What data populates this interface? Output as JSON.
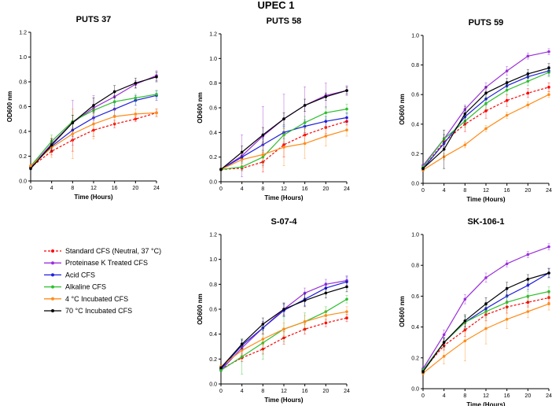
{
  "figure_title": "UPEC 1",
  "legend": [
    {
      "label": "Standard CFS (Neutral, 37 °C)",
      "color": "#ff0000",
      "dashed": true
    },
    {
      "label": "Proteinase K Treated CFS",
      "color": "#9b30d9",
      "dashed": false
    },
    {
      "label": "Acid CFS",
      "color": "#1f1fdb",
      "dashed": false
    },
    {
      "label": "Alkaline CFS",
      "color": "#2fbf2f",
      "dashed": false
    },
    {
      "label": "4 °C Incubated CFS",
      "color": "#ff8c1a",
      "dashed": false
    },
    {
      "label": "70 °C Incubated CFS",
      "color": "#000000",
      "dashed": false
    }
  ],
  "chart_data": [
    {
      "type": "line",
      "title": "PUTS 37",
      "xlabel": "Time (Hours)",
      "ylabel": "OD600 nm",
      "x": [
        0,
        4,
        8,
        12,
        16,
        20,
        24
      ],
      "ylim": [
        0,
        1.2
      ],
      "yticks": [
        "0.0",
        "0.2",
        "0.4",
        "0.6",
        "0.8",
        "1.0",
        "1.2"
      ],
      "series": [
        {
          "name": "Standard CFS (Neutral, 37 °C)",
          "values": [
            0.11,
            0.24,
            0.33,
            0.41,
            0.46,
            0.5,
            0.55
          ],
          "err": [
            0.01,
            0.03,
            0.09,
            0.05,
            0.03,
            0.02,
            0.03
          ]
        },
        {
          "name": "Proteinase K Treated CFS",
          "values": [
            0.11,
            0.3,
            0.47,
            0.59,
            0.68,
            0.78,
            0.85
          ],
          "err": [
            0.01,
            0.04,
            0.18,
            0.1,
            0.05,
            0.03,
            0.04
          ]
        },
        {
          "name": "Acid CFS",
          "values": [
            0.11,
            0.28,
            0.41,
            0.51,
            0.58,
            0.65,
            0.69
          ],
          "err": [
            0.01,
            0.03,
            0.05,
            0.05,
            0.05,
            0.04,
            0.04
          ]
        },
        {
          "name": "Alkaline CFS",
          "values": [
            0.12,
            0.32,
            0.48,
            0.57,
            0.64,
            0.67,
            0.7
          ],
          "err": [
            0.01,
            0.05,
            0.05,
            0.04,
            0.03,
            0.03,
            0.03
          ]
        },
        {
          "name": "4 °C Incubated CFS",
          "values": [
            0.12,
            0.27,
            0.38,
            0.46,
            0.52,
            0.54,
            0.55
          ],
          "err": [
            0.01,
            0.08,
            0.2,
            0.12,
            0.06,
            0.04,
            0.03
          ]
        },
        {
          "name": "70 °C Incubated CFS",
          "values": [
            0.1,
            0.29,
            0.47,
            0.61,
            0.72,
            0.79,
            0.84
          ],
          "err": [
            0.01,
            0.05,
            0.06,
            0.06,
            0.05,
            0.04,
            0.04
          ]
        }
      ]
    },
    {
      "type": "line",
      "title": "PUTS 58",
      "xlabel": "Time (Hours)",
      "ylabel": "OD600 nm",
      "x": [
        0,
        4,
        8,
        12,
        16,
        20,
        24
      ],
      "ylim": [
        0,
        1.2
      ],
      "yticks": [
        "0.0",
        "0.2",
        "0.4",
        "0.6",
        "0.8",
        "1.0",
        "1.2"
      ],
      "series": [
        {
          "name": "Standard CFS (Neutral, 37 °C)",
          "values": [
            0.1,
            0.11,
            0.16,
            0.3,
            0.38,
            0.44,
            0.49
          ],
          "err": [
            0.01,
            0.02,
            0.08,
            0.1,
            0.07,
            0.05,
            0.03
          ]
        },
        {
          "name": "Proteinase K Treated CFS",
          "values": [
            0.1,
            0.21,
            0.37,
            0.51,
            0.62,
            0.7,
            0.74
          ],
          "err": [
            0.01,
            0.17,
            0.24,
            0.2,
            0.15,
            0.1,
            0.04
          ]
        },
        {
          "name": "Acid CFS",
          "values": [
            0.1,
            0.2,
            0.3,
            0.4,
            0.45,
            0.49,
            0.52
          ],
          "err": [
            0.01,
            0.04,
            0.05,
            0.05,
            0.05,
            0.04,
            0.04
          ]
        },
        {
          "name": "Alkaline CFS",
          "values": [
            0.1,
            0.12,
            0.2,
            0.38,
            0.48,
            0.56,
            0.59
          ],
          "err": [
            0.01,
            0.03,
            0.06,
            0.06,
            0.05,
            0.05,
            0.04
          ]
        },
        {
          "name": "4 °C Incubated CFS",
          "values": [
            0.1,
            0.18,
            0.22,
            0.28,
            0.31,
            0.37,
            0.42
          ],
          "err": [
            0.01,
            0.05,
            0.1,
            0.15,
            0.12,
            0.08,
            0.05
          ]
        },
        {
          "name": "70 °C Incubated CFS",
          "values": [
            0.1,
            0.24,
            0.38,
            0.51,
            0.62,
            0.69,
            0.74
          ],
          "err": [
            0.01,
            0.05,
            0.06,
            0.05,
            0.05,
            0.03,
            0.03
          ]
        }
      ]
    },
    {
      "type": "line",
      "title": "PUTS 59",
      "xlabel": "Time (Hours)",
      "ylabel": "OD600 nm",
      "x": [
        0,
        4,
        8,
        12,
        16,
        20,
        24
      ],
      "ylim": [
        0,
        1.0
      ],
      "yticks": [
        "0.0",
        "0.2",
        "0.4",
        "0.6",
        "0.8",
        "1.0"
      ],
      "series": [
        {
          "name": "Standard CFS (Neutral, 37 °C)",
          "values": [
            0.1,
            0.28,
            0.4,
            0.49,
            0.56,
            0.61,
            0.65
          ],
          "err": [
            0.01,
            0.03,
            0.05,
            0.05,
            0.04,
            0.03,
            0.03
          ]
        },
        {
          "name": "Proteinase K Treated CFS",
          "values": [
            0.12,
            0.3,
            0.5,
            0.65,
            0.76,
            0.86,
            0.89
          ],
          "err": [
            0.01,
            0.03,
            0.03,
            0.03,
            0.03,
            0.02,
            0.02
          ]
        },
        {
          "name": "Acid CFS",
          "values": [
            0.1,
            0.27,
            0.45,
            0.57,
            0.66,
            0.72,
            0.76
          ],
          "err": [
            0.01,
            0.03,
            0.04,
            0.04,
            0.03,
            0.03,
            0.03
          ]
        },
        {
          "name": "Alkaline CFS",
          "values": [
            0.11,
            0.3,
            0.42,
            0.54,
            0.63,
            0.69,
            0.75
          ],
          "err": [
            0.01,
            0.03,
            0.04,
            0.04,
            0.03,
            0.03,
            0.03
          ]
        },
        {
          "name": "4 °C Incubated CFS",
          "values": [
            0.09,
            0.18,
            0.26,
            0.37,
            0.46,
            0.53,
            0.6
          ],
          "err": [
            0.01,
            0.02,
            0.02,
            0.02,
            0.02,
            0.02,
            0.02
          ]
        },
        {
          "name": "70 °C Incubated CFS",
          "values": [
            0.1,
            0.23,
            0.47,
            0.61,
            0.68,
            0.74,
            0.78
          ],
          "err": [
            0.01,
            0.13,
            0.05,
            0.04,
            0.03,
            0.03,
            0.03
          ]
        }
      ]
    },
    {
      "type": "line",
      "title": "S-07-4",
      "xlabel": "Time (Hours)",
      "ylabel": "OD600 nm",
      "x": [
        0,
        4,
        8,
        12,
        16,
        20,
        24
      ],
      "ylim": [
        0,
        1.2
      ],
      "yticks": [
        "0.0",
        "0.2",
        "0.4",
        "0.6",
        "0.8",
        "1.0",
        "1.2"
      ],
      "series": [
        {
          "name": "Standard CFS (Neutral, 37 °C)",
          "values": [
            0.12,
            0.21,
            0.28,
            0.37,
            0.44,
            0.49,
            0.53
          ],
          "err": [
            0.01,
            0.03,
            0.04,
            0.05,
            0.04,
            0.03,
            0.03
          ]
        },
        {
          "name": "Proteinase K Treated CFS",
          "values": [
            0.11,
            0.29,
            0.45,
            0.6,
            0.73,
            0.8,
            0.83
          ],
          "err": [
            0.01,
            0.04,
            0.05,
            0.05,
            0.04,
            0.04,
            0.04
          ]
        },
        {
          "name": "Acid CFS",
          "values": [
            0.12,
            0.31,
            0.45,
            0.59,
            0.68,
            0.77,
            0.82
          ],
          "err": [
            0.01,
            0.04,
            0.05,
            0.05,
            0.05,
            0.04,
            0.04
          ]
        },
        {
          "name": "Alkaline CFS",
          "values": [
            0.11,
            0.22,
            0.33,
            0.44,
            0.5,
            0.58,
            0.68
          ],
          "err": [
            0.01,
            0.14,
            0.13,
            0.1,
            0.07,
            0.04,
            0.03
          ]
        },
        {
          "name": "4 °C Incubated CFS",
          "values": [
            0.14,
            0.27,
            0.36,
            0.44,
            0.5,
            0.55,
            0.58
          ],
          "err": [
            0.01,
            0.04,
            0.05,
            0.05,
            0.05,
            0.04,
            0.04
          ]
        },
        {
          "name": "70 °C Incubated CFS",
          "values": [
            0.13,
            0.32,
            0.48,
            0.6,
            0.67,
            0.73,
            0.78
          ],
          "err": [
            0.01,
            0.04,
            0.05,
            0.05,
            0.05,
            0.04,
            0.04
          ]
        }
      ]
    },
    {
      "type": "line",
      "title": "SK-106-1",
      "xlabel": "Time (Hours)",
      "ylabel": "OD600 nm",
      "x": [
        0,
        4,
        8,
        12,
        16,
        20,
        24
      ],
      "ylim": [
        0,
        1.0
      ],
      "yticks": [
        "0.0",
        "0.2",
        "0.4",
        "0.6",
        "0.8",
        "1.0"
      ],
      "series": [
        {
          "name": "Standard CFS (Neutral, 37 °C)",
          "values": [
            0.12,
            0.28,
            0.38,
            0.48,
            0.53,
            0.56,
            0.59
          ],
          "err": [
            0.01,
            0.03,
            0.04,
            0.04,
            0.04,
            0.03,
            0.03
          ]
        },
        {
          "name": "Proteinase K Treated CFS",
          "values": [
            0.13,
            0.35,
            0.58,
            0.72,
            0.81,
            0.87,
            0.92
          ],
          "err": [
            0.01,
            0.03,
            0.03,
            0.03,
            0.02,
            0.02,
            0.02
          ]
        },
        {
          "name": "Acid CFS",
          "values": [
            0.12,
            0.3,
            0.43,
            0.52,
            0.6,
            0.67,
            0.75
          ],
          "err": [
            0.01,
            0.03,
            0.04,
            0.04,
            0.04,
            0.03,
            0.03
          ]
        },
        {
          "name": "Alkaline CFS",
          "values": [
            0.12,
            0.3,
            0.43,
            0.5,
            0.56,
            0.6,
            0.63
          ],
          "err": [
            0.01,
            0.03,
            0.04,
            0.04,
            0.04,
            0.03,
            0.03
          ]
        },
        {
          "name": "4 °C Incubated CFS",
          "values": [
            0.1,
            0.21,
            0.31,
            0.39,
            0.45,
            0.5,
            0.55
          ],
          "err": [
            0.01,
            0.05,
            0.13,
            0.1,
            0.06,
            0.04,
            0.04
          ]
        },
        {
          "name": "70 °C Incubated CFS",
          "values": [
            0.11,
            0.3,
            0.44,
            0.55,
            0.65,
            0.71,
            0.75
          ],
          "err": [
            0.01,
            0.03,
            0.04,
            0.04,
            0.04,
            0.03,
            0.03
          ]
        }
      ]
    }
  ]
}
